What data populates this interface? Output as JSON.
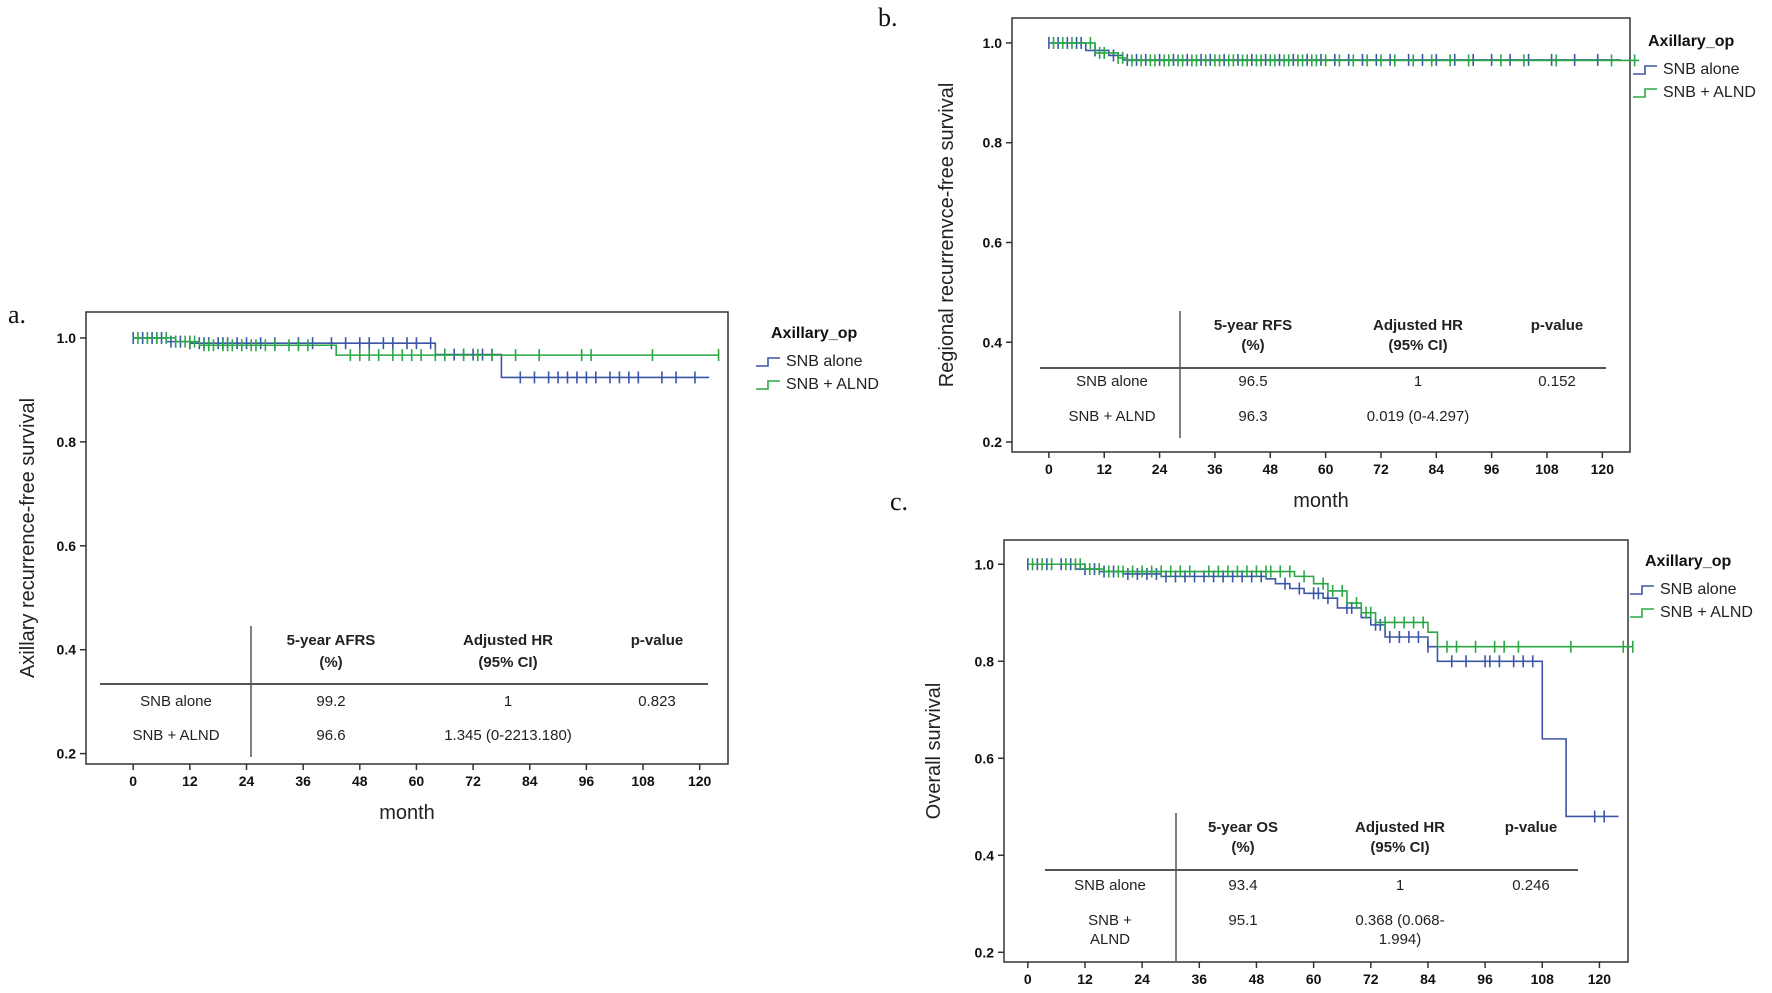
{
  "chart_data": [
    {
      "id": "a",
      "panel_label": "a.",
      "type": "line",
      "subtype": "kaplan-meier",
      "ylabel": "Axillary recurrence-free  survival",
      "xlabel": "month",
      "xlim": [
        -10,
        126
      ],
      "ylim": [
        0.18,
        1.05
      ],
      "xticks": [
        0,
        12,
        24,
        36,
        48,
        60,
        72,
        84,
        96,
        108,
        120
      ],
      "yticks": [
        {
          "v": 1.0,
          "label": "1.0"
        },
        {
          "v": 0.8,
          "label": "0.8"
        },
        {
          "v": 0.6,
          "label": "0.6"
        },
        {
          "v": 0.4,
          "label": "0.4"
        },
        {
          "v": 0.2,
          "label": "0.2"
        }
      ],
      "legend": {
        "title": "Axillary_op",
        "entries": [
          "SNB alone",
          "SNB + ALND"
        ]
      },
      "series": [
        {
          "name": "SNB alone",
          "color": "#3b56a6",
          "steps": [
            [
              0,
              1.0
            ],
            [
              7,
              0.993
            ],
            [
              12,
              0.99
            ],
            [
              64,
              0.968
            ],
            [
              78,
              0.924
            ],
            [
              122,
              0.924
            ]
          ],
          "censors": [
            0,
            2,
            4,
            5,
            6,
            8,
            9,
            10,
            12,
            14,
            15,
            16,
            18,
            19,
            20,
            22,
            24,
            27,
            30,
            35,
            38,
            42,
            45,
            48,
            50,
            53,
            55,
            58,
            60,
            63,
            66,
            68,
            70,
            72,
            74,
            76,
            82,
            85,
            88,
            90,
            92,
            94,
            96,
            98,
            101,
            103,
            105,
            107,
            112,
            115,
            119
          ]
        },
        {
          "name": "SNB + ALND",
          "color": "#2aa845",
          "steps": [
            [
              0,
              1.0
            ],
            [
              9,
              0.993
            ],
            [
              14,
              0.986
            ],
            [
              43,
              0.967
            ],
            [
              124,
              0.967
            ]
          ],
          "censors": [
            1,
            3,
            5,
            7,
            9,
            11,
            12,
            13,
            15,
            16,
            17,
            19,
            20,
            21,
            23,
            25,
            26,
            28,
            30,
            33,
            35,
            37,
            46,
            48,
            50,
            52,
            55,
            57,
            59,
            61,
            64,
            66,
            70,
            73,
            76,
            81,
            86,
            95,
            97,
            110,
            124
          ]
        }
      ],
      "table": {
        "headers": [
          [
            "5-year AFRS",
            "(%)"
          ],
          [
            "Adjusted  HR",
            "(95% CI)"
          ],
          [
            "p-value"
          ]
        ],
        "rows": [
          {
            "group": [
              "SNB alone"
            ],
            "cells": [
              [
                "99.2"
              ],
              [
                "1"
              ],
              [
                "0.823"
              ]
            ]
          },
          {
            "group": [
              "SNB + ALND"
            ],
            "cells": [
              [
                "96.6"
              ],
              [
                "1.345 (0-2213.180)"
              ],
              [
                ""
              ]
            ]
          }
        ]
      }
    },
    {
      "id": "b",
      "panel_label": "b.",
      "type": "line",
      "subtype": "kaplan-meier",
      "ylabel": "Regional recurrenvce-free  survival",
      "xlabel": "month",
      "xlim": [
        -8,
        126
      ],
      "ylim": [
        0.18,
        1.05
      ],
      "xticks": [
        0,
        12,
        24,
        36,
        48,
        60,
        72,
        84,
        96,
        108,
        120
      ],
      "yticks": [
        {
          "v": 1.0,
          "label": "1.0"
        },
        {
          "v": 0.8,
          "label": "0.8"
        },
        {
          "v": 0.6,
          "label": "0.6"
        },
        {
          "v": 0.4,
          "label": "0.4"
        },
        {
          "v": 0.2,
          "label": "0.2"
        }
      ],
      "legend": {
        "title": "Axillary_op",
        "entries": [
          "SNB alone",
          "SNB + ALND"
        ]
      },
      "series": [
        {
          "name": "SNB alone",
          "color": "#3b56a6",
          "steps": [
            [
              0,
              1.0
            ],
            [
              8,
              0.985
            ],
            [
              13,
              0.975
            ],
            [
              16,
              0.966
            ],
            [
              124,
              0.966
            ]
          ],
          "censors": [
            0,
            2,
            4,
            6,
            7,
            10,
            14,
            17,
            19,
            21,
            24,
            27,
            30,
            33,
            35,
            38,
            41,
            44,
            47,
            50,
            53,
            56,
            59,
            62,
            65,
            68,
            71,
            74,
            78,
            81,
            84,
            88,
            92,
            96,
            100,
            104,
            109,
            114,
            119
          ]
        },
        {
          "name": "SNB + ALND",
          "color": "#2aa845",
          "steps": [
            [
              0,
              1.0
            ],
            [
              10,
              0.98
            ],
            [
              15,
              0.97
            ],
            [
              17,
              0.965
            ],
            [
              128,
              0.965
            ]
          ],
          "censors": [
            1,
            3,
            5,
            9,
            11,
            12,
            15,
            16,
            18,
            20,
            22,
            23,
            25,
            26,
            28,
            29,
            31,
            32,
            34,
            36,
            37,
            39,
            40,
            42,
            43,
            45,
            46,
            48,
            49,
            51,
            52,
            54,
            55,
            57,
            58,
            60,
            63,
            66,
            69,
            72,
            75,
            79,
            83,
            87,
            91,
            98,
            103,
            110,
            122,
            127
          ]
        }
      ],
      "table": {
        "headers": [
          [
            "5-year RFS",
            "(%)"
          ],
          [
            "Adjusted  HR",
            "(95% CI)"
          ],
          [
            "p-value"
          ]
        ],
        "rows": [
          {
            "group": [
              "SNB alone"
            ],
            "cells": [
              [
                "96.5"
              ],
              [
                "1"
              ],
              [
                "0.152"
              ]
            ]
          },
          {
            "group": [
              "SNB + ALND"
            ],
            "cells": [
              [
                "96.3"
              ],
              [
                "0.019 (0-4.297)"
              ],
              [
                ""
              ]
            ]
          }
        ]
      }
    },
    {
      "id": "c",
      "panel_label": "c.",
      "type": "line",
      "subtype": "kaplan-meier",
      "ylabel": "Overall  survival",
      "xlabel": "",
      "xlim": [
        -5,
        126
      ],
      "ylim": [
        0.18,
        1.05
      ],
      "xticks": [
        0,
        12,
        24,
        36,
        48,
        60,
        72,
        84,
        96,
        108,
        120
      ],
      "yticks": [
        {
          "v": 1.0,
          "label": "1.0"
        },
        {
          "v": 0.8,
          "label": "0.8"
        },
        {
          "v": 0.6,
          "label": "0.6"
        },
        {
          "v": 0.4,
          "label": "0.4"
        },
        {
          "v": 0.2,
          "label": "0.2"
        }
      ],
      "legend": {
        "title": "Axillary_op",
        "entries": [
          "SNB alone",
          "SNB + ALND"
        ]
      },
      "series": [
        {
          "name": "SNB alone",
          "color": "#3b56a6",
          "steps": [
            [
              0,
              1.0
            ],
            [
              10,
              0.99
            ],
            [
              15,
              0.985
            ],
            [
              20,
              0.98
            ],
            [
              28,
              0.975
            ],
            [
              50,
              0.97
            ],
            [
              52,
              0.96
            ],
            [
              55,
              0.95
            ],
            [
              58,
              0.94
            ],
            [
              62,
              0.93
            ],
            [
              65,
              0.91
            ],
            [
              70,
              0.89
            ],
            [
              72,
              0.875
            ],
            [
              75,
              0.85
            ],
            [
              84,
              0.83
            ],
            [
              86,
              0.8
            ],
            [
              108,
              0.64
            ],
            [
              113,
              0.48
            ],
            [
              124,
              0.48
            ]
          ],
          "censors": [
            0,
            2,
            4,
            7,
            9,
            12,
            14,
            16,
            18,
            21,
            23,
            25,
            27,
            29,
            31,
            33,
            35,
            37,
            39,
            41,
            43,
            45,
            47,
            49,
            54,
            57,
            60,
            61,
            63,
            67,
            68,
            73,
            74,
            76,
            78,
            80,
            82,
            84,
            89,
            92,
            96,
            97,
            99,
            102,
            104,
            106,
            119,
            121
          ]
        },
        {
          "name": "SNB + ALND",
          "color": "#2aa845",
          "steps": [
            [
              0,
              1.0
            ],
            [
              12,
              0.99
            ],
            [
              16,
              0.985
            ],
            [
              56,
              0.975
            ],
            [
              60,
              0.96
            ],
            [
              63,
              0.945
            ],
            [
              67,
              0.92
            ],
            [
              70,
              0.9
            ],
            [
              73,
              0.88
            ],
            [
              84,
              0.86
            ],
            [
              86,
              0.83
            ],
            [
              127,
              0.83
            ]
          ],
          "censors": [
            1,
            3,
            5,
            8,
            10,
            11,
            13,
            15,
            17,
            19,
            20,
            22,
            24,
            26,
            28,
            30,
            32,
            34,
            38,
            40,
            42,
            44,
            46,
            48,
            50,
            51,
            53,
            55,
            58,
            62,
            64,
            66,
            69,
            71,
            72,
            75,
            77,
            79,
            81,
            83,
            88,
            90,
            94,
            98,
            100,
            103,
            114,
            125,
            127
          ]
        }
      ],
      "table": {
        "headers": [
          [
            "5-year OS",
            "(%)"
          ],
          [
            "Adjusted  HR",
            "(95% CI)"
          ],
          [
            "p-value"
          ]
        ],
        "rows": [
          {
            "group": [
              "SNB alone"
            ],
            "cells": [
              [
                "93.4"
              ],
              [
                "1"
              ],
              [
                "0.246"
              ]
            ]
          },
          {
            "group": [
              "SNB +",
              "ALND"
            ],
            "cells": [
              [
                "95.1"
              ],
              [
                "0.368 (0.068-",
                "1.994)"
              ],
              [
                ""
              ]
            ]
          }
        ]
      }
    }
  ]
}
